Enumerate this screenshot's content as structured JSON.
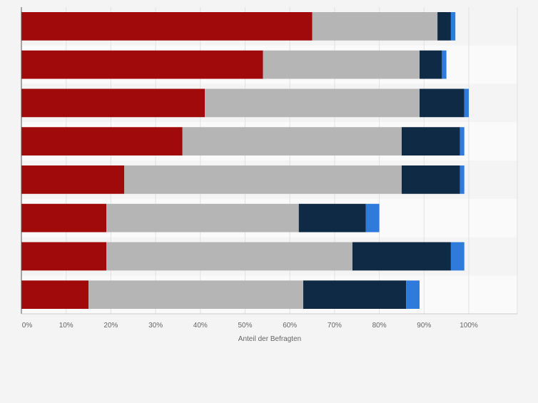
{
  "chart_data": {
    "type": "bar",
    "orientation": "horizontal",
    "stacked": true,
    "categories": [
      "",
      "",
      "",
      "",
      "",
      "",
      "",
      ""
    ],
    "series": [
      {
        "color": "#a10a0a",
        "values": [
          65,
          54,
          41,
          36,
          23,
          19,
          19,
          15
        ]
      },
      {
        "color": "#b5b5b5",
        "values": [
          28,
          35,
          48,
          49,
          62,
          43,
          55,
          48
        ]
      },
      {
        "color": "#0e2a45",
        "values": [
          3,
          5,
          10,
          13,
          13,
          15,
          22,
          23
        ]
      },
      {
        "color": "#2f7bdb",
        "values": [
          1,
          1,
          1,
          1,
          1,
          3,
          3,
          3
        ]
      }
    ],
    "xlim": [
      0,
      110
    ],
    "xticks": [
      0,
      10,
      20,
      30,
      40,
      50,
      60,
      70,
      80,
      90,
      100
    ],
    "xtick_labels": [
      "0%",
      "10%",
      "20%",
      "30%",
      "40%",
      "50%",
      "60%",
      "70%",
      "80%",
      "90%",
      "100%"
    ],
    "xlabel": "Anteil der Befragten",
    "ylabel": "",
    "title": "",
    "legend": "none",
    "grid": true,
    "band_colors": [
      "#f4f4f4",
      "#fafafa"
    ]
  }
}
